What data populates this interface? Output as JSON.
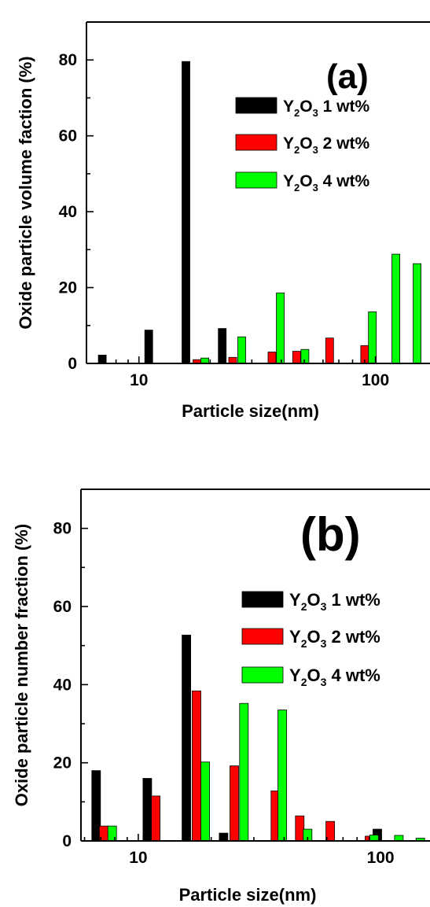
{
  "colors": {
    "Y2O3 1 wt%": "#000000",
    "Y2O3 2 wt%": "#ff0000",
    "Y2O3 4 wt%": "#00ff00"
  },
  "chart_data": [
    {
      "type": "bar",
      "panel_label": "(a)",
      "xlabel": "Particle size(nm)",
      "ylabel": "Oxide particle volume faction (%)",
      "xscale": "log",
      "xlim": [
        6,
        170
      ],
      "ylim": [
        0,
        90
      ],
      "yticks": [
        0,
        20,
        40,
        60,
        80
      ],
      "xticks": [
        10,
        100
      ],
      "xtick_labels": [
        "10",
        "100"
      ],
      "legend_position": "top-right",
      "series": [
        {
          "name": "Y2O3 1 wt%",
          "name_main": "Y",
          "name_sub": "2",
          "name_mid": "O",
          "name_sub2": "3",
          "name_tail": "1 wt%",
          "points": [
            {
              "x": 7,
              "y": 2.2
            },
            {
              "x": 11,
              "y": 8.8
            },
            {
              "x": 15.8,
              "y": 79.6
            },
            {
              "x": 22.5,
              "y": 9.2
            }
          ]
        },
        {
          "name": "Y2O3 2 wt%",
          "name_main": "Y",
          "name_sub": "2",
          "name_mid": "O",
          "name_sub2": "3",
          "name_tail": "2 wt%",
          "points": [
            {
              "x": 17.6,
              "y": 1.0
            },
            {
              "x": 24.9,
              "y": 1.6
            },
            {
              "x": 36.5,
              "y": 3.0
            },
            {
              "x": 46.4,
              "y": 3.2
            },
            {
              "x": 64.0,
              "y": 6.7
            },
            {
              "x": 90.0,
              "y": 4.7
            }
          ]
        },
        {
          "name": "Y2O3 4 wt%",
          "name_main": "Y",
          "name_sub": "2",
          "name_mid": "O",
          "name_sub2": "3",
          "name_tail": "4 wt%",
          "points": [
            {
              "x": 19.0,
              "y": 1.4
            },
            {
              "x": 27.2,
              "y": 7.0
            },
            {
              "x": 39.6,
              "y": 18.6
            },
            {
              "x": 50.3,
              "y": 3.7
            },
            {
              "x": 97.0,
              "y": 13.6
            },
            {
              "x": 122.0,
              "y": 28.8
            },
            {
              "x": 150.0,
              "y": 26.3
            }
          ]
        }
      ]
    },
    {
      "type": "bar",
      "panel_label": "(b)",
      "xlabel": "Particle size(nm)",
      "ylabel": "Oxide particle number fraction (%)",
      "xscale": "log",
      "xlim": [
        5.8,
        160
      ],
      "ylim": [
        0,
        90
      ],
      "yticks": [
        0,
        20,
        40,
        60,
        80
      ],
      "xticks": [
        10,
        100
      ],
      "xtick_labels": [
        "10",
        "100"
      ],
      "legend_position": "top-right",
      "series": [
        {
          "name": "Y2O3 1 wt%",
          "name_main": "Y",
          "name_sub": "2",
          "name_mid": "O",
          "name_sub2": "3",
          "name_tail": "1 wt%",
          "points": [
            {
              "x": 6.7,
              "y": 18.0
            },
            {
              "x": 10.9,
              "y": 16.0
            },
            {
              "x": 15.8,
              "y": 52.7
            },
            {
              "x": 22.5,
              "y": 2.0
            },
            {
              "x": 97.0,
              "y": 3.0
            }
          ]
        },
        {
          "name": "Y2O3 2 wt%",
          "name_main": "Y",
          "name_sub": "2",
          "name_mid": "O",
          "name_sub2": "3",
          "name_tail": "2 wt%",
          "points": [
            {
              "x": 7.2,
              "y": 3.8
            },
            {
              "x": 11.8,
              "y": 11.5
            },
            {
              "x": 17.4,
              "y": 38.4
            },
            {
              "x": 24.9,
              "y": 19.2
            },
            {
              "x": 36.8,
              "y": 12.8
            },
            {
              "x": 46.4,
              "y": 6.4
            },
            {
              "x": 62.0,
              "y": 5.0
            },
            {
              "x": 90.0,
              "y": 1.2
            }
          ]
        },
        {
          "name": "Y2O3 4 wt%",
          "name_main": "Y",
          "name_sub": "2",
          "name_mid": "O",
          "name_sub2": "3",
          "name_tail": "4 wt%",
          "points": [
            {
              "x": 7.8,
              "y": 3.8
            },
            {
              "x": 18.9,
              "y": 20.2
            },
            {
              "x": 27.3,
              "y": 35.2
            },
            {
              "x": 39.3,
              "y": 33.5
            },
            {
              "x": 50.0,
              "y": 3.0
            },
            {
              "x": 94.0,
              "y": 1.5
            },
            {
              "x": 119.0,
              "y": 1.4
            },
            {
              "x": 146.0,
              "y": 0.7
            }
          ]
        }
      ]
    }
  ]
}
